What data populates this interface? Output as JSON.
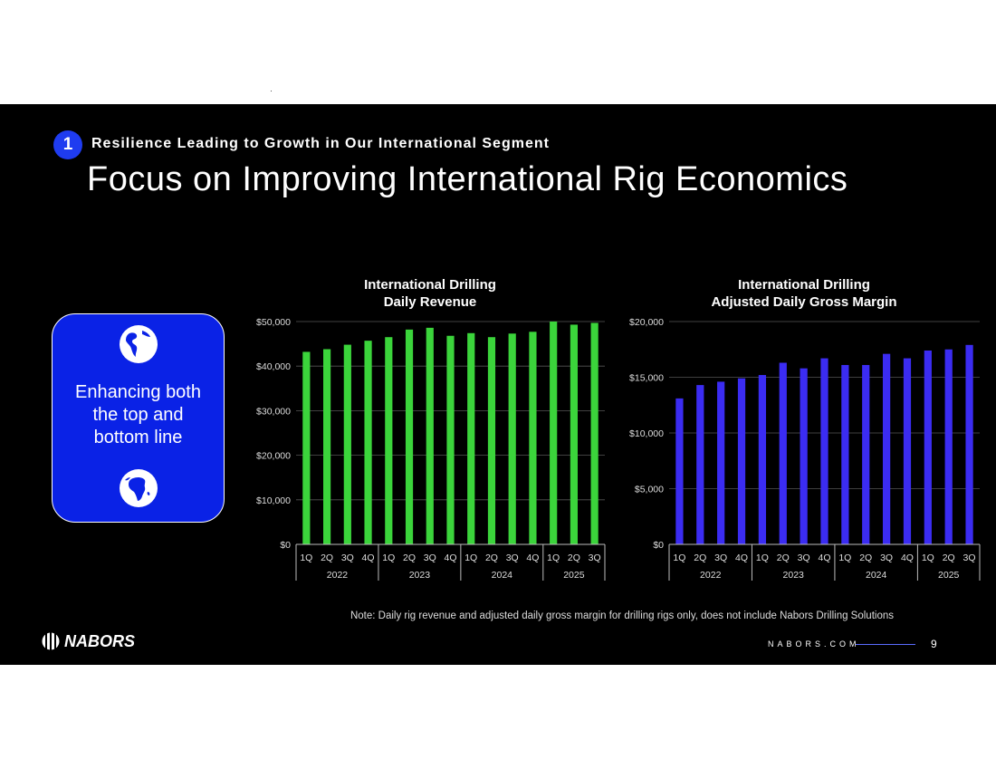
{
  "slide": {
    "badge": "1",
    "subhead": "Resilience Leading to Growth in Our International Segment",
    "title": "Focus on Improving International Rig Economics",
    "card_text": "Enhancing both\nthe top and\nbottom line",
    "note": "Note: Daily rig revenue and adjusted daily gross margin for drilling rigs only, does not include Nabors Drilling Solutions",
    "logo_text": "NABORS",
    "site": "NABORS.COM",
    "page_number": "9"
  },
  "colors": {
    "background": "#000000",
    "accent_blue": "#0a22e6",
    "revenue_bar": "#3bd43b",
    "margin_bar": "#3b2cf2"
  },
  "icons": [
    "globe-americas-icon",
    "globe-africa-icon",
    "nabors-logo-icon"
  ],
  "chart_data": [
    {
      "type": "bar",
      "title": "International Drilling\nDaily Revenue",
      "categories": [
        "1Q",
        "2Q",
        "3Q",
        "4Q",
        "1Q",
        "2Q",
        "3Q",
        "4Q",
        "1Q",
        "2Q",
        "3Q",
        "4Q",
        "1Q",
        "2Q",
        "3Q"
      ],
      "groups": [
        {
          "label": "2022",
          "count": 4
        },
        {
          "label": "2023",
          "count": 4
        },
        {
          "label": "2024",
          "count": 4
        },
        {
          "label": "2025",
          "count": 3
        }
      ],
      "values": [
        43200,
        43800,
        44800,
        45700,
        46500,
        48200,
        48600,
        46800,
        47400,
        46500,
        47300,
        47700,
        50000,
        49300,
        49700
      ],
      "ylim": [
        0,
        50000
      ],
      "yticks": [
        0,
        10000,
        20000,
        30000,
        40000,
        50000
      ],
      "ytick_labels": [
        "$0",
        "$10,000",
        "$20,000",
        "$30,000",
        "$40,000",
        "$50,000"
      ],
      "grid": true,
      "color": "#3bd43b"
    },
    {
      "type": "bar",
      "title": "International Drilling\nAdjusted Daily Gross Margin",
      "categories": [
        "1Q",
        "2Q",
        "3Q",
        "4Q",
        "1Q",
        "2Q",
        "3Q",
        "4Q",
        "1Q",
        "2Q",
        "3Q",
        "4Q",
        "1Q",
        "2Q",
        "3Q"
      ],
      "groups": [
        {
          "label": "2022",
          "count": 4
        },
        {
          "label": "2023",
          "count": 4
        },
        {
          "label": "2024",
          "count": 4
        },
        {
          "label": "2025",
          "count": 3
        }
      ],
      "values": [
        13100,
        14300,
        14600,
        14900,
        15200,
        16300,
        15800,
        16700,
        16100,
        16100,
        17100,
        16700,
        17400,
        17500,
        17900
      ],
      "ylim": [
        0,
        20000
      ],
      "yticks": [
        0,
        5000,
        10000,
        15000,
        20000
      ],
      "ytick_labels": [
        "$0",
        "$5,000",
        "$10,000",
        "$15,000",
        "$20,000"
      ],
      "grid": true,
      "color": "#3b2cf2"
    }
  ]
}
